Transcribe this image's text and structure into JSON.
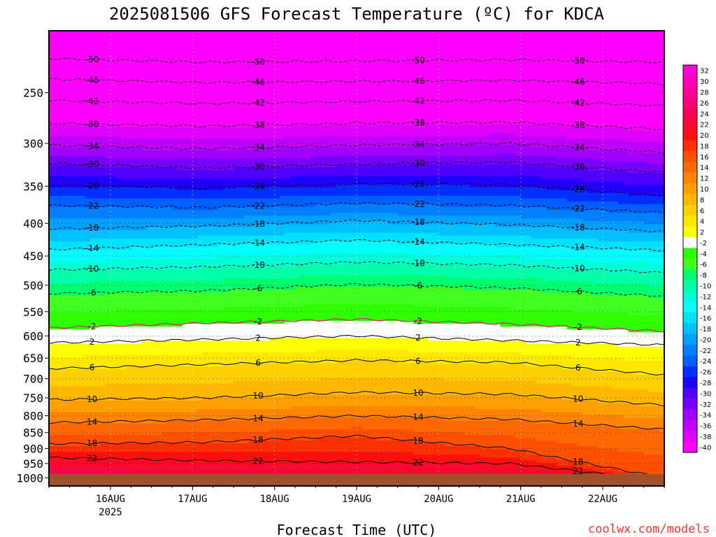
{
  "chart_data": {
    "type": "heatmap",
    "title": "2025081506 GFS Forecast Temperature (ºC) for KDCA",
    "xlabel": "Forecast Time (UTC)",
    "watermark": "coolwx.com/models",
    "x_ticks": [
      {
        "label": "16AUG",
        "sublabel": "2025",
        "day": 16
      },
      {
        "label": "17AUG",
        "sublabel": "",
        "day": 17
      },
      {
        "label": "18AUG",
        "sublabel": "",
        "day": 18
      },
      {
        "label": "19AUG",
        "sublabel": "",
        "day": 19
      },
      {
        "label": "20AUG",
        "sublabel": "",
        "day": 20
      },
      {
        "label": "21AUG",
        "sublabel": "",
        "day": 21
      },
      {
        "label": "22AUG",
        "sublabel": "",
        "day": 22
      }
    ],
    "x_range_days": [
      15.25,
      22.75
    ],
    "y_axis": "pressure (hPa), log scale, inverted",
    "y_ticks": [
      250,
      300,
      350,
      400,
      450,
      500,
      550,
      600,
      650,
      700,
      750,
      800,
      850,
      900,
      950,
      1000
    ],
    "y_range": [
      200,
      1030
    ],
    "colorbar_labels": [
      32,
      30,
      28,
      26,
      24,
      22,
      20,
      18,
      16,
      14,
      12,
      10,
      8,
      6,
      4,
      2,
      -2,
      -4,
      -6,
      -8,
      -10,
      -12,
      -14,
      -16,
      -18,
      -20,
      -22,
      -24,
      -26,
      -28,
      -30,
      -32,
      -34,
      -36,
      -38,
      -40
    ],
    "colorbar_colors": [
      "#ff00d8",
      "#ff00b8",
      "#ff0098",
      "#ff0078",
      "#ff0050",
      "#ff0830",
      "#ff1010",
      "#ff3000",
      "#ff5000",
      "#ff6800",
      "#ff8400",
      "#ffa000",
      "#ffb800",
      "#ffd000",
      "#ffe800",
      "#ffff00",
      "#ffffff",
      "#30ff00",
      "#40ff20",
      "#00ff70",
      "#00ffa8",
      "#00ffd8",
      "#00ffff",
      "#00e0ff",
      "#00c0ff",
      "#00a0ff",
      "#0080ff",
      "#0060ff",
      "#0030ff",
      "#2000ff",
      "#5000ff",
      "#7800ff",
      "#a000ff",
      "#c000ff",
      "#e000ff",
      "#ff00ff"
    ],
    "contours": [
      {
        "value": -50,
        "label": "-50",
        "p": [
          221,
          224,
          223,
          222,
          224
        ]
      },
      {
        "value": -46,
        "label": "-46",
        "p": [
          238,
          241,
          240,
          239,
          242
        ]
      },
      {
        "value": -42,
        "label": "-42",
        "p": [
          257,
          260,
          258,
          257,
          262
        ]
      },
      {
        "value": -38,
        "label": "-38",
        "p": [
          279,
          282,
          279,
          278,
          285
        ]
      },
      {
        "value": -34,
        "label": "-34",
        "p": [
          302,
          306,
          302,
          300,
          310
        ]
      },
      {
        "value": -30,
        "label": "-30",
        "p": [
          322,
          328,
          323,
          321,
          333
        ]
      },
      {
        "value": -26,
        "label": "-26",
        "p": [
          348,
          352,
          347,
          348,
          362
        ]
      },
      {
        "value": -22,
        "label": "-22",
        "p": [
          375,
          378,
          372,
          375,
          385
        ]
      },
      {
        "value": -18,
        "label": "-18",
        "p": [
          408,
          404,
          396,
          402,
          412
        ]
      },
      {
        "value": -14,
        "label": "-14",
        "p": [
          440,
          432,
          425,
          432,
          441
        ]
      },
      {
        "value": -10,
        "label": "-10",
        "p": [
          473,
          468,
          460,
          465,
          478
        ]
      },
      {
        "value": -6,
        "label": "-6",
        "p": [
          515,
          510,
          498,
          505,
          520
        ]
      },
      {
        "value": -2,
        "label": "-2",
        "p": [
          583,
          573,
          565,
          575,
          590
        ]
      },
      {
        "value": 2,
        "label": "2",
        "p": [
          615,
          608,
          600,
          610,
          620
        ]
      },
      {
        "value": 6,
        "label": "6",
        "p": [
          675,
          665,
          655,
          660,
          690
        ]
      },
      {
        "value": 10,
        "label": "10",
        "p": [
          755,
          750,
          735,
          740,
          770
        ]
      },
      {
        "value": 14,
        "label": "14",
        "p": [
          820,
          812,
          800,
          810,
          840
        ]
      },
      {
        "value": 18,
        "label": "18",
        "p": [
          885,
          880,
          860,
          900,
          1000
        ]
      },
      {
        "value": 22,
        "label": "22",
        "p": [
          930,
          940,
          945,
          950,
          1010
        ]
      }
    ],
    "colorbar_thresholds": [
      -40,
      -38,
      -36,
      -34,
      -32,
      -30,
      -28,
      -26,
      -24,
      -22,
      -20,
      -18,
      -16,
      -14,
      -12,
      -10,
      -8,
      -6,
      -4,
      -2,
      2,
      4,
      6,
      8,
      10,
      12,
      14,
      16,
      18,
      20,
      22,
      24,
      26,
      28,
      30,
      32
    ],
    "surface_color": "#a0522d",
    "grid": true,
    "legend": "right colorbar"
  }
}
